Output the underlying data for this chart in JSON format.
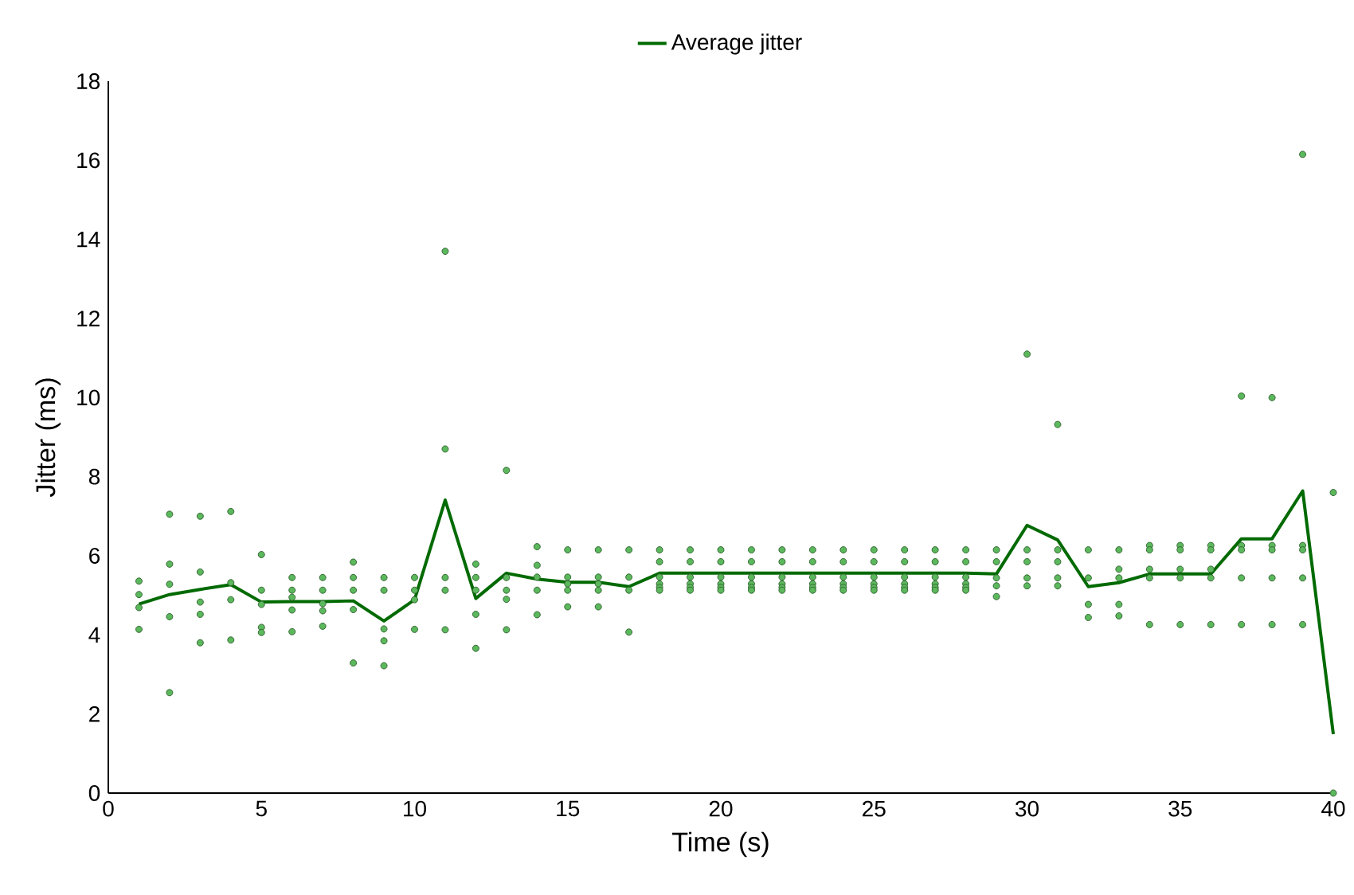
{
  "chart_data": {
    "type": "scatter",
    "xlabel": "Time (s)",
    "ylabel": "Jitter (ms)",
    "xlim": [
      0,
      40
    ],
    "xticks": [
      0,
      5,
      10,
      15,
      20,
      25,
      30,
      35,
      40
    ],
    "ylim": [
      0,
      18
    ],
    "yticks": [
      0,
      2,
      4,
      6,
      8,
      10,
      12,
      14,
      16,
      18
    ],
    "legend": "top",
    "marker": "circle",
    "series": [
      {
        "color": "#5cb85c",
        "x": [
          1,
          1,
          1,
          1,
          2,
          2,
          2,
          2,
          2,
          3,
          3,
          3,
          3,
          3,
          4,
          4,
          4,
          4,
          5,
          5,
          5,
          5,
          5,
          6,
          6,
          6,
          6,
          6,
          7,
          7,
          7,
          7,
          7,
          8,
          8,
          8,
          8,
          8,
          9,
          9,
          9,
          9,
          9,
          10,
          10,
          10,
          10,
          11,
          11,
          11,
          11,
          11,
          12,
          12,
          12,
          12,
          12,
          13,
          13,
          13,
          13,
          13,
          14,
          14,
          14,
          14,
          14,
          15,
          15,
          15,
          15,
          15,
          16,
          16,
          16,
          16,
          16,
          17,
          17,
          17,
          17,
          18,
          18,
          18,
          18,
          18,
          18,
          19,
          19,
          19,
          19,
          19,
          19,
          20,
          20,
          20,
          20,
          20,
          20,
          21,
          21,
          21,
          21,
          21,
          21,
          22,
          22,
          22,
          22,
          22,
          22,
          23,
          23,
          23,
          23,
          23,
          23,
          24,
          24,
          24,
          24,
          24,
          24,
          25,
          25,
          25,
          25,
          25,
          25,
          26,
          26,
          26,
          26,
          26,
          26,
          27,
          27,
          27,
          27,
          27,
          27,
          28,
          28,
          28,
          28,
          28,
          28,
          29,
          29,
          29,
          29,
          29,
          30,
          30,
          30,
          30,
          30,
          31,
          31,
          31,
          31,
          31,
          32,
          32,
          32,
          32,
          33,
          33,
          33,
          33,
          33,
          34,
          34,
          34,
          34,
          34,
          35,
          35,
          35,
          35,
          35,
          36,
          36,
          36,
          36,
          36,
          37,
          37,
          37,
          37,
          37,
          38,
          38,
          38,
          38,
          38,
          39,
          39,
          39,
          39,
          39,
          40,
          40
        ],
        "values": [
          5.36,
          5.02,
          4.69,
          4.14,
          7.05,
          5.79,
          5.28,
          4.46,
          2.54,
          7.0,
          5.59,
          4.83,
          4.52,
          3.8,
          7.12,
          5.32,
          4.89,
          3.87,
          6.03,
          5.13,
          4.77,
          4.19,
          4.06,
          5.45,
          5.13,
          4.95,
          4.63,
          4.08,
          5.45,
          5.13,
          4.79,
          4.61,
          4.22,
          5.84,
          5.45,
          5.13,
          4.64,
          3.29,
          5.45,
          5.13,
          4.15,
          3.85,
          3.22,
          5.45,
          5.13,
          4.89,
          4.14,
          13.7,
          8.7,
          5.45,
          5.13,
          4.13,
          5.79,
          5.45,
          5.13,
          4.52,
          3.66,
          8.16,
          5.45,
          5.13,
          4.9,
          4.13,
          6.23,
          5.76,
          5.46,
          5.13,
          4.51,
          6.15,
          5.46,
          5.29,
          5.13,
          4.71,
          6.15,
          5.46,
          5.29,
          5.13,
          4.71,
          6.15,
          5.46,
          5.13,
          4.07,
          6.15,
          5.85,
          5.46,
          5.29,
          5.2,
          5.13,
          6.15,
          5.85,
          5.46,
          5.29,
          5.2,
          5.13,
          6.15,
          5.85,
          5.46,
          5.29,
          5.2,
          5.13,
          6.15,
          5.85,
          5.46,
          5.29,
          5.2,
          5.13,
          6.15,
          5.85,
          5.46,
          5.29,
          5.2,
          5.13,
          6.15,
          5.85,
          5.46,
          5.29,
          5.2,
          5.13,
          6.15,
          5.85,
          5.46,
          5.29,
          5.2,
          5.13,
          6.15,
          5.85,
          5.46,
          5.29,
          5.2,
          5.13,
          6.15,
          5.85,
          5.46,
          5.29,
          5.2,
          5.13,
          6.15,
          5.85,
          5.46,
          5.29,
          5.2,
          5.13,
          6.15,
          5.85,
          5.46,
          5.29,
          5.2,
          5.13,
          6.15,
          5.85,
          5.44,
          5.24,
          4.97,
          11.1,
          6.15,
          5.85,
          5.44,
          5.24,
          9.32,
          6.15,
          5.85,
          5.44,
          5.24,
          6.15,
          5.44,
          4.77,
          4.44,
          6.15,
          5.66,
          5.44,
          4.77,
          4.48,
          6.26,
          6.15,
          5.66,
          5.44,
          4.26,
          6.26,
          6.15,
          5.66,
          5.44,
          4.26,
          6.26,
          6.15,
          5.66,
          5.44,
          4.26,
          10.04,
          6.26,
          6.15,
          5.44,
          4.26,
          10.0,
          6.26,
          6.15,
          5.44,
          4.26,
          16.15,
          6.26,
          6.15,
          5.44,
          4.26,
          7.6,
          0.0
        ]
      },
      {
        "type": "line",
        "name": "Average jitter",
        "color": "#006a00",
        "line_style": "solid",
        "marker": "none",
        "x": [
          1,
          2,
          3,
          4,
          5,
          6,
          7,
          8,
          9,
          10,
          11,
          12,
          13,
          14,
          15,
          16,
          17,
          18,
          19,
          20,
          21,
          22,
          23,
          24,
          25,
          26,
          27,
          28,
          29,
          30,
          31,
          32,
          33,
          34,
          35,
          36,
          37,
          38,
          39,
          40
        ],
        "values": [
          4.78,
          5.02,
          5.15,
          5.27,
          4.83,
          4.84,
          4.84,
          4.86,
          4.35,
          4.89,
          7.41,
          4.92,
          5.56,
          5.41,
          5.33,
          5.33,
          5.22,
          5.56,
          5.56,
          5.56,
          5.56,
          5.56,
          5.56,
          5.56,
          5.56,
          5.56,
          5.56,
          5.56,
          5.54,
          6.77,
          6.4,
          5.22,
          5.32,
          5.54,
          5.54,
          5.54,
          6.43,
          6.43,
          7.64,
          1.49
        ]
      }
    ]
  }
}
